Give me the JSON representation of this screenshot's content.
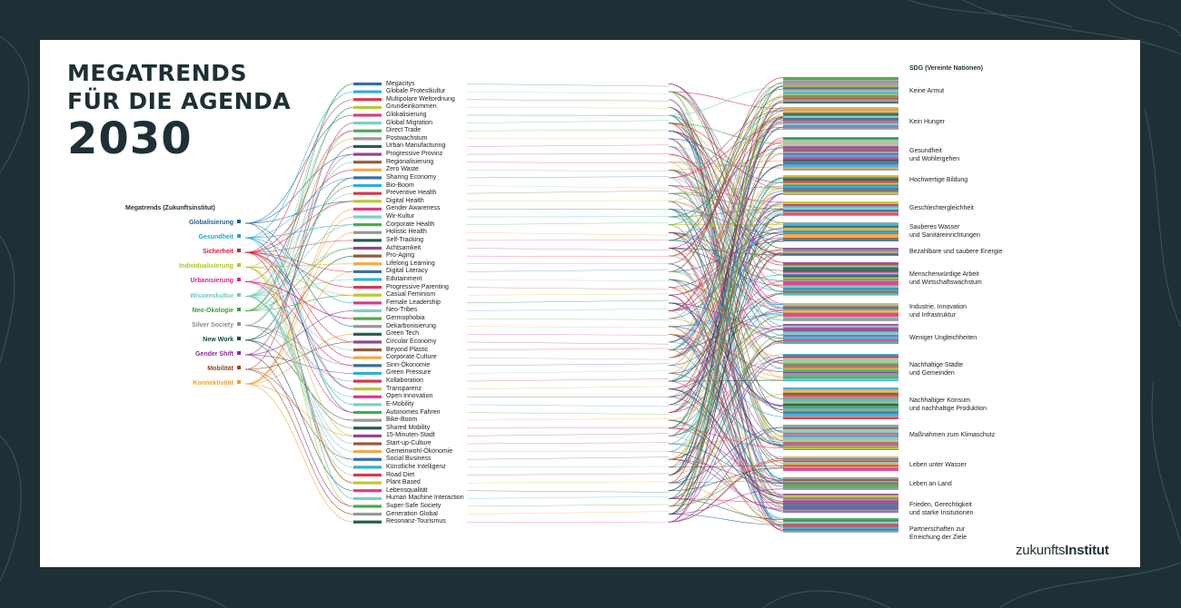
{
  "title": {
    "line1": "MEGATRENDS",
    "line2": "FÜR DIE AGENDA",
    "line3": "2030"
  },
  "megatrends_heading": "Megatrends (Zukunftsinstitut)",
  "sdg_heading": "SDG (Vereinte Nationen)",
  "megatrends": [
    {
      "label": "Globalisierung",
      "color": "#1f5f9c"
    },
    {
      "label": "Gesundheit",
      "color": "#1aa6d6"
    },
    {
      "label": "Sicherheit",
      "color": "#d4213d"
    },
    {
      "label": "Individualisierung",
      "color": "#b4c21f"
    },
    {
      "label": "Urbanisierung",
      "color": "#d9257c"
    },
    {
      "label": "Wissenskultur",
      "color": "#6fc9bc"
    },
    {
      "label": "Neo-Ökologie",
      "color": "#3a9e3a"
    },
    {
      "label": "Silver Society",
      "color": "#8c8c8c"
    },
    {
      "label": "New Work",
      "color": "#0f4d3c"
    },
    {
      "label": "Gender Shift",
      "color": "#8b2d8b"
    },
    {
      "label": "Mobilität",
      "color": "#8a4a23"
    },
    {
      "label": "Konnektivität",
      "color": "#f0a030"
    }
  ],
  "subtrends": [
    "Megacitys",
    "Globale Protestkultur",
    "Multipolare Weltordnung",
    "Grundeinkommen",
    "Glokalisierung",
    "Global Migration",
    "Direct Trade",
    "Postwachstum",
    "Urban Manufacturing",
    "Progressive Provinz",
    "Regionalisierung",
    "Zero Waste",
    "Sharing Economy",
    "Bio-Boom",
    "Preventive Health",
    "Digital Health",
    "Gender Awareness",
    "Wir-Kultur",
    "Corporate Health",
    "Holistic Health",
    "Self-Tracking",
    "Achtsamkeit",
    "Pro-Aging",
    "Lifelong Learning",
    "Digital Literacy",
    "Edutainment",
    "Progressive Parenting",
    "Casual Feminism",
    "Female Leadership",
    "Neo-Tribes",
    "Germophobia",
    "Dekarbonisierung",
    "Green Tech",
    "Circular Economy",
    "Beyond Plastic",
    "Corporate Culture",
    "Sinn-Ökonomie",
    "Green Pressure",
    "Kollaboration",
    "Transparenz",
    "Open Innovation",
    "E-Mobility",
    "Autonomes Fahren",
    "Bike-Boom",
    "Shared Mobility",
    "15-Minuten-Stadt",
    "Start-up-Culture",
    "Gemeinwohl-Ökonomie",
    "Social Business",
    "Künstliche Intelligenz",
    "Road Diet",
    "Plant Based",
    "Lebensqualität",
    "Human Machine Interaction",
    "Super-Safe Society",
    "Generation Global",
    "Resonanz-Tourismus"
  ],
  "sdgs": [
    [
      "Keine Armut"
    ],
    [
      "Kein Hunger"
    ],
    [
      "Gesundheit",
      "und Wohlergehen"
    ],
    [
      "Hochwertige Bildung"
    ],
    [
      "Geschlechtergleichheit"
    ],
    [
      "Sauberes Wasser",
      "und  Sanitäreinrichtungen"
    ],
    [
      "Bezahlbare und  saubere Energie"
    ],
    [
      "Menschenwürdige Arbeit",
      "und  Wirtschaftswachstum"
    ],
    [
      "Industrie, Innovation",
      "und Infrastruktur"
    ],
    [
      "Weniger Ungleichheiten"
    ],
    [
      "Nachhaltige Städte",
      "und Gemeinden"
    ],
    [
      "Nachhaltiger Konsum",
      "und nachhaltige Produktion"
    ],
    [
      "Maßnahmen zum Klimaschutz"
    ],
    [
      "Leben unter Wasser"
    ],
    [
      "Leben an Land"
    ],
    [
      "Frieden, Gerechtigkeit",
      "und starke Insitutionen"
    ],
    [
      "Partnerschaften zur",
      "Erreichung der Ziele"
    ]
  ],
  "logo": {
    "light": "zukunfts",
    "bold": "Institut"
  },
  "colors": {
    "background": "#1e3035",
    "card": "#ffffff",
    "title": "#1e3035"
  }
}
